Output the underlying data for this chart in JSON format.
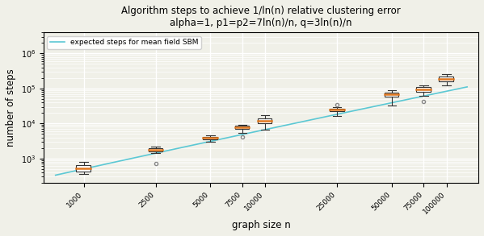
{
  "title_line1": "Algorithm steps to achieve 1/ln(n) relative clustering error",
  "title_line2": "alpha=1, p1=p2=7ln(n)/n, q=3ln(n)/n",
  "xlabel": "graph size n",
  "ylabel": "number of steps",
  "legend_label": "expected steps for mean field SBM",
  "n_vals": [
    1000,
    2500,
    5000,
    7500,
    10000,
    25000,
    50000,
    75000,
    100000
  ],
  "box_data": {
    "1000": {
      "whislo": 350,
      "q1": 430,
      "med": 520,
      "q3": 640,
      "whishi": 780,
      "fliers": []
    },
    "2500": {
      "whislo": 1400,
      "q1": 1600,
      "med": 1800,
      "q3": 2000,
      "whishi": 2200,
      "fliers": [
        700
      ]
    },
    "5000": {
      "whislo": 3000,
      "q1": 3600,
      "med": 3900,
      "q3": 4200,
      "whishi": 4600,
      "fliers": []
    },
    "7500": {
      "whislo": 5500,
      "q1": 7000,
      "med": 7800,
      "q3": 8500,
      "whishi": 9200,
      "fliers": [
        4200
      ]
    },
    "10000": {
      "whislo": 6800,
      "q1": 10000,
      "med": 12000,
      "q3": 14000,
      "whishi": 17000,
      "fliers": []
    },
    "25000": {
      "whislo": 16000,
      "q1": 22000,
      "med": 25000,
      "q3": 27000,
      "whishi": 30000,
      "fliers": [
        35000
      ]
    },
    "50000": {
      "whislo": 33000,
      "q1": 58000,
      "med": 68000,
      "q3": 78000,
      "whishi": 90000,
      "fliers": []
    },
    "75000": {
      "whislo": 62000,
      "q1": 82000,
      "med": 95000,
      "q3": 110000,
      "whishi": 125000,
      "fliers": [
        43000
      ]
    },
    "100000": {
      "whislo": 120000,
      "q1": 160000,
      "med": 190000,
      "q3": 220000,
      "whishi": 255000,
      "fliers": []
    }
  },
  "line_color": "#5bc8d4",
  "box_edge_color": "#333333",
  "median_color": "#e07820",
  "box_face_color": "#ffffff",
  "flier_color": "#888888",
  "background_color": "#f0f0e8",
  "grid_color": "#ffffff",
  "ylim": [
    200,
    4000000
  ],
  "xlim": [
    600,
    150000
  ]
}
